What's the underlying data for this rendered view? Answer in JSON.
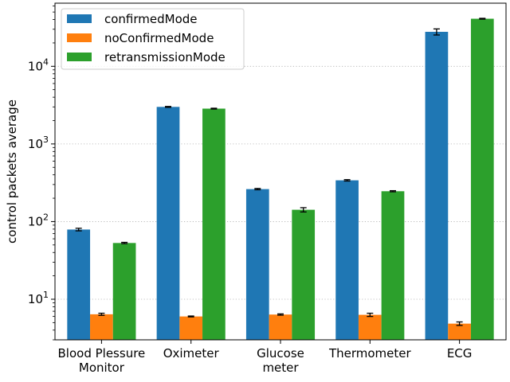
{
  "chart_data": {
    "type": "bar",
    "title": "",
    "xlabel": "",
    "ylabel": "control packets average",
    "yscale": "log",
    "ylim": [
      3,
      65000
    ],
    "grid": "y-dotted",
    "legend_position": "top-left",
    "categories": [
      [
        "Blood Plessure",
        "Monitor"
      ],
      [
        "Oximeter"
      ],
      [
        "Glucose",
        "meter"
      ],
      [
        "Thermometer"
      ],
      [
        "ECG"
      ]
    ],
    "y_ticks": [
      {
        "value": 10,
        "base": "10",
        "exp": "1"
      },
      {
        "value": 100,
        "base": "10",
        "exp": "2"
      },
      {
        "value": 1000,
        "base": "10",
        "exp": "3"
      },
      {
        "value": 10000,
        "base": "10",
        "exp": "4"
      }
    ],
    "series": [
      {
        "name": "confirmedMode",
        "color": "#1f77b4",
        "values": [
          79,
          3000,
          262,
          340,
          27800
        ],
        "errors": [
          3,
          40,
          5,
          7,
          2500
        ]
      },
      {
        "name": "noConfirmedMode",
        "color": "#ff7f0e",
        "values": [
          6.4,
          6.0,
          6.35,
          6.3,
          4.85
        ],
        "errors": [
          0.2,
          0.08,
          0.12,
          0.3,
          0.25
        ]
      },
      {
        "name": "retransmissionMode",
        "color": "#2ca02c",
        "values": [
          53,
          2850,
          142,
          246,
          41000
        ],
        "errors": [
          1,
          35,
          9,
          4,
          500
        ]
      }
    ]
  }
}
